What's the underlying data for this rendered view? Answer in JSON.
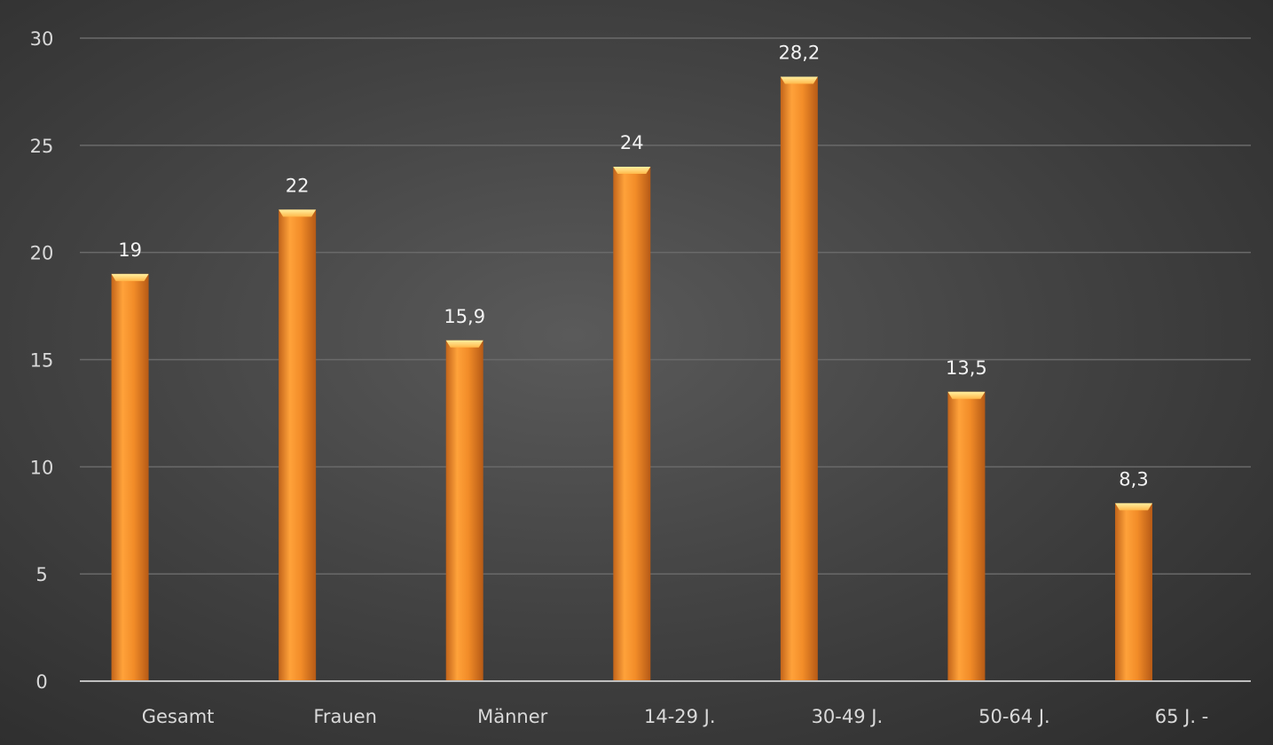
{
  "chart_data": {
    "type": "bar",
    "categories": [
      "Gesamt",
      "Frauen",
      "Männer",
      "14-29 J.",
      "30-49 J.",
      "50-64 J.",
      "65 J. -"
    ],
    "values": [
      19,
      22,
      15.9,
      24,
      28.2,
      13.5,
      8.3
    ],
    "data_labels": [
      "19",
      "22",
      "15,9",
      "24",
      "28,2",
      "13,5",
      "8,3"
    ],
    "y_ticks": [
      "0",
      "5",
      "10",
      "15",
      "20",
      "25",
      "30"
    ],
    "ylim": [
      0,
      30
    ],
    "grid": true,
    "colors": {
      "bar": "#f28c28",
      "bar_light": "#ffb24a",
      "bar_dark": "#c2641a",
      "grid": "#6a6a6a",
      "axis": "#bfbfbf"
    }
  }
}
